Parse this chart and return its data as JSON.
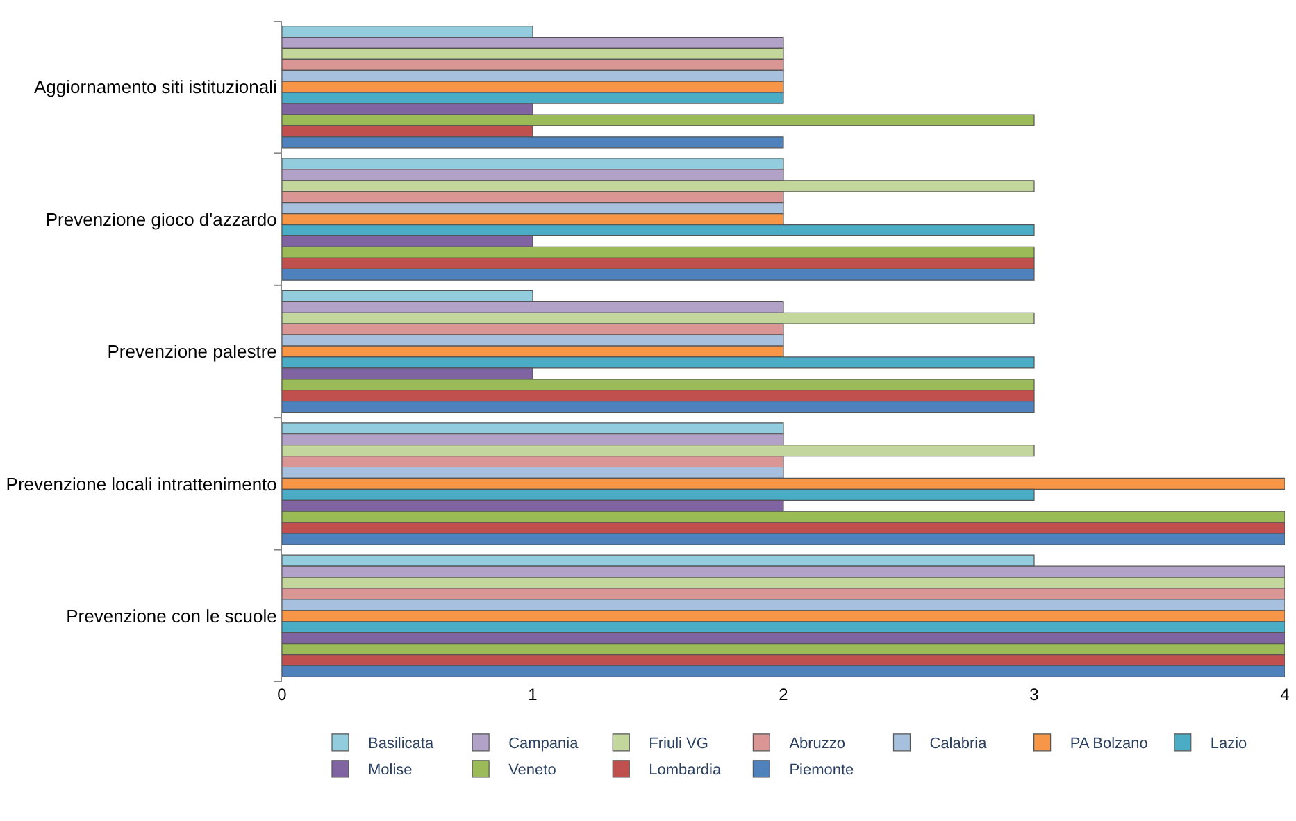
{
  "chart_data": {
    "type": "bar",
    "orientation": "horizontal",
    "categories": [
      "Aggiornamento siti istituzionali",
      "Prevenzione gioco d'azzardo",
      "Prevenzione palestre",
      "Prevenzione locali intrattenimento",
      "Prevenzione con le scuole"
    ],
    "xlim": [
      0,
      4
    ],
    "xticks": [
      0,
      1,
      2,
      3,
      4
    ],
    "legend": "bottom",
    "series": [
      {
        "name": "Piemonte",
        "color": "#4f81bd",
        "values": [
          2,
          3,
          3,
          4,
          4
        ]
      },
      {
        "name": "Lombardia",
        "color": "#c0504d",
        "values": [
          1,
          3,
          3,
          4,
          4
        ]
      },
      {
        "name": "Veneto",
        "color": "#9bbb59",
        "values": [
          3,
          3,
          3,
          4,
          4
        ]
      },
      {
        "name": "Molise",
        "color": "#8064a2",
        "values": [
          1,
          1,
          1,
          2,
          4
        ]
      },
      {
        "name": "Lazio",
        "color": "#4bacc6",
        "values": [
          2,
          3,
          3,
          3,
          4
        ]
      },
      {
        "name": "PA Bolzano",
        "color": "#f79646",
        "values": [
          2,
          2,
          2,
          4,
          4
        ]
      },
      {
        "name": "Calabria",
        "color": "#a7c0de",
        "values": [
          2,
          2,
          2,
          2,
          4
        ]
      },
      {
        "name": "Abruzzo",
        "color": "#d99694",
        "values": [
          2,
          2,
          2,
          2,
          4
        ]
      },
      {
        "name": "Friuli VG",
        "color": "#c3d69b",
        "values": [
          2,
          3,
          3,
          3,
          4
        ]
      },
      {
        "name": "Campania",
        "color": "#b3a2c7",
        "values": [
          2,
          2,
          2,
          2,
          4
        ]
      },
      {
        "name": "Basilicata",
        "color": "#93cddd",
        "values": [
          1,
          2,
          1,
          2,
          3
        ]
      }
    ]
  }
}
